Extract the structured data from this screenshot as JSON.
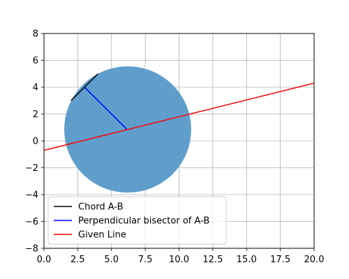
{
  "chart_data": {
    "type": "line",
    "title": "",
    "xlabel": "",
    "ylabel": "",
    "xlim": [
      0,
      20
    ],
    "ylim": [
      -8,
      8
    ],
    "xticks": [
      0,
      2.5,
      5,
      7.5,
      10,
      12.5,
      15,
      17.5,
      20
    ],
    "xtick_labels": [
      "0.0",
      "2.5",
      "5.0",
      "7.5",
      "10.0",
      "12.5",
      "15.0",
      "17.5",
      "20.0"
    ],
    "yticks": [
      -8,
      -6,
      -4,
      -2,
      0,
      2,
      4,
      6,
      8
    ],
    "ytick_labels": [
      "−8",
      "−6",
      "−4",
      "−2",
      "0",
      "2",
      "4",
      "6",
      "8"
    ],
    "grid": true,
    "legend_position": "lower-left",
    "circle": {
      "center": [
        6.2,
        0.85
      ],
      "radius": 4.7,
      "color": "#5f9ecb"
    },
    "series": [
      {
        "name": "Chord A-B",
        "color": "#000000",
        "points": [
          [
            2,
            3
          ],
          [
            4,
            5
          ]
        ]
      },
      {
        "name": "Perpendicular bisector of A-B",
        "color": "#0000ff",
        "points": [
          [
            3,
            4
          ],
          [
            6.15,
            0.85
          ]
        ]
      },
      {
        "name": "Given Line",
        "color": "#ff0000",
        "points": [
          [
            0,
            -0.7
          ],
          [
            20,
            4.3
          ]
        ]
      }
    ]
  }
}
